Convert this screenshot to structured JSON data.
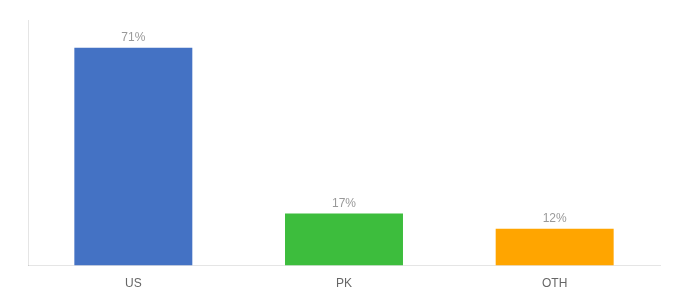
{
  "chart_data": {
    "type": "bar",
    "categories": [
      "US",
      "PK",
      "OTH"
    ],
    "values": [
      71,
      17,
      12
    ],
    "value_labels": [
      "71%",
      "17%",
      "12%"
    ],
    "colors": [
      "#4472C4",
      "#3DBD3D",
      "#FFA500"
    ],
    "data_labels": true,
    "ylim": [
      0,
      80
    ],
    "grid": false,
    "tick_labels": "x"
  }
}
